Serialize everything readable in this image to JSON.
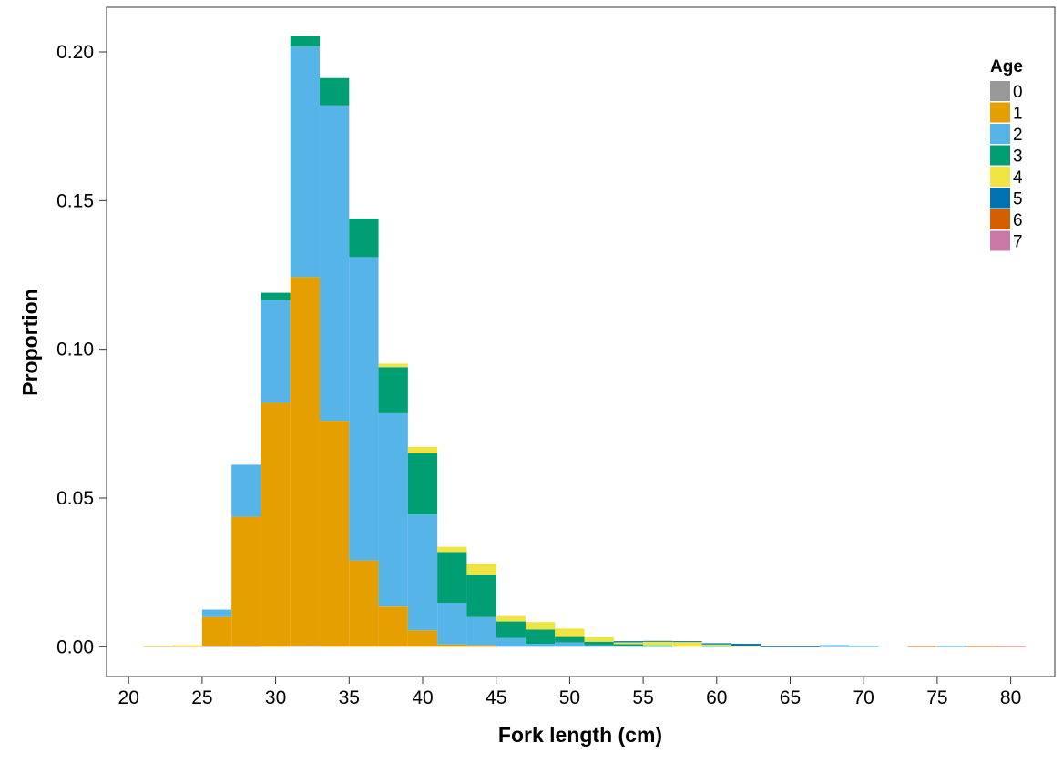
{
  "chart_data": {
    "type": "bar",
    "stacked": true,
    "title": "",
    "xlabel": "Fork length (cm)",
    "ylabel": "Proportion",
    "xlim": [
      18.5,
      83
    ],
    "ylim": [
      -0.01,
      0.215
    ],
    "xticks": [
      20,
      25,
      30,
      35,
      40,
      45,
      50,
      55,
      60,
      65,
      70,
      75,
      80
    ],
    "yticks": [
      0.0,
      0.05,
      0.1,
      0.15,
      0.2
    ],
    "ytick_labels": [
      "0.00",
      "0.05",
      "0.10",
      "0.15",
      "0.20"
    ],
    "bin_width": 2,
    "bin_centers": [
      22,
      24,
      26,
      28,
      30,
      32,
      34,
      36,
      38,
      40,
      42,
      44,
      46,
      48,
      50,
      52,
      54,
      56,
      58,
      60,
      62,
      64,
      66,
      68,
      70,
      72,
      74,
      76,
      78,
      80
    ],
    "grid": false,
    "legend": {
      "title": "Age",
      "position": "top-right"
    },
    "series": [
      {
        "name": "0",
        "color": "#999999",
        "values": [
          0.0002,
          0,
          0.0002,
          0.0002,
          0,
          0.0003,
          0,
          0,
          0,
          0,
          0,
          0,
          0,
          0,
          0,
          0,
          0,
          0,
          0,
          0,
          0,
          0,
          0,
          0,
          0,
          0,
          0,
          0,
          0,
          0
        ]
      },
      {
        "name": "1",
        "color": "#E69F00",
        "values": [
          0,
          0.0003,
          0.0098,
          0.0435,
          0.082,
          0.124,
          0.076,
          0.029,
          0.0135,
          0.0055,
          0.0008,
          0.0005,
          0,
          0,
          0,
          0,
          0,
          0,
          0,
          0,
          0,
          0,
          0,
          0,
          0,
          0,
          0,
          0,
          0,
          0
        ]
      },
      {
        "name": "2",
        "color": "#56B4E9",
        "values": [
          0,
          0,
          0.0025,
          0.0175,
          0.0345,
          0.0775,
          0.106,
          0.102,
          0.065,
          0.039,
          0.014,
          0.0095,
          0.003,
          0.001,
          0.0015,
          0.0005,
          0.0003,
          0,
          0,
          0,
          0,
          0,
          0,
          0,
          0,
          0,
          0,
          0,
          0,
          0
        ]
      },
      {
        "name": "3",
        "color": "#009E73",
        "values": [
          0,
          0,
          0,
          0,
          0.0025,
          0.0035,
          0.0092,
          0.013,
          0.0155,
          0.0205,
          0.017,
          0.0142,
          0.0055,
          0.0048,
          0.0018,
          0.0012,
          0.0006,
          0.0005,
          0,
          0.0003,
          0,
          0,
          0,
          0,
          0,
          0,
          0,
          0,
          0,
          0
        ]
      },
      {
        "name": "4",
        "color": "#F0E442",
        "values": [
          0.0001,
          0.0002,
          0,
          0,
          0,
          0,
          0,
          0,
          0.0012,
          0.0022,
          0.0018,
          0.0038,
          0.0018,
          0.0025,
          0.0028,
          0.0015,
          0.0006,
          0.0012,
          0.0016,
          0.0005,
          0.0002,
          0,
          0,
          0,
          0,
          0,
          0,
          0,
          0,
          0
        ]
      },
      {
        "name": "5",
        "color": "#0072B2",
        "values": [
          0,
          0,
          0,
          0,
          0,
          0,
          0,
          0,
          0,
          0,
          0,
          0,
          0,
          0,
          0,
          0,
          0.0004,
          0.0003,
          0.0003,
          0.0004,
          0.0008,
          0.0001,
          0.0001,
          0.0005,
          0.0003,
          0,
          0,
          0.0003,
          0,
          0
        ]
      },
      {
        "name": "6",
        "color": "#D55E00",
        "values": [
          0,
          0,
          0,
          0,
          0,
          0,
          0,
          0,
          0,
          0,
          0,
          0,
          0,
          0,
          0,
          0,
          0,
          0,
          0,
          0,
          0,
          0,
          0,
          0,
          0,
          0,
          0.0002,
          0,
          0.0002,
          0.0002
        ]
      },
      {
        "name": "7",
        "color": "#CC79A7",
        "values": [
          0,
          0,
          0,
          0,
          0,
          0,
          0,
          0,
          0,
          0,
          0,
          0,
          0,
          0,
          0,
          0,
          0,
          0,
          0,
          0,
          0,
          0,
          0,
          0,
          0,
          0,
          0,
          0,
          0,
          0.0001
        ]
      }
    ]
  }
}
